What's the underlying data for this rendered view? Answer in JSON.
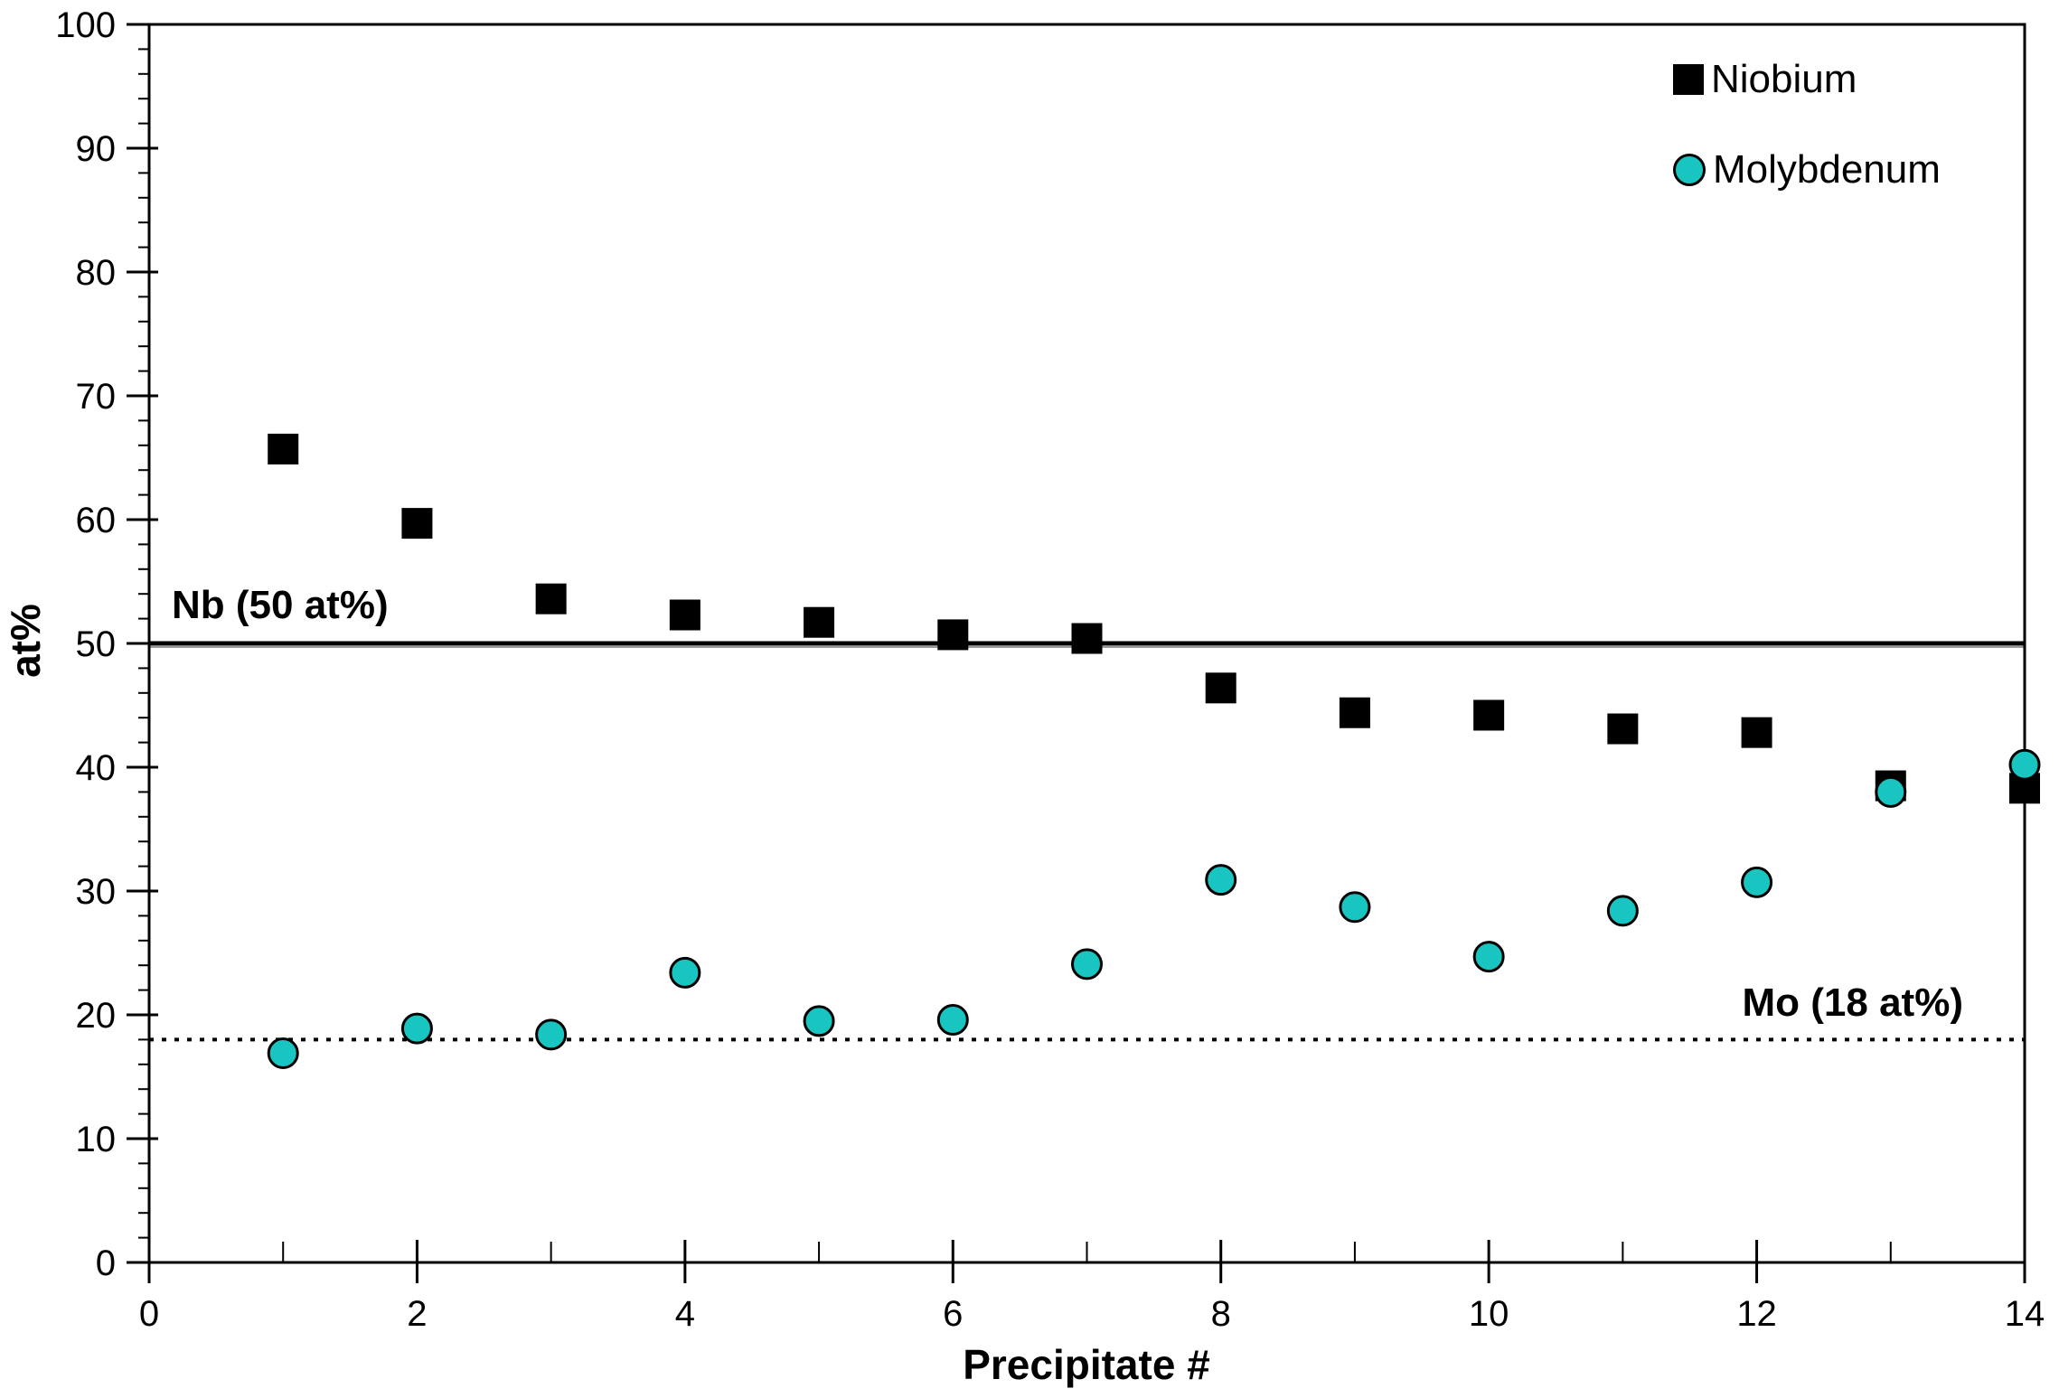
{
  "axes": {
    "x_title": "Precipitate #",
    "y_title": "at%"
  },
  "legend": {
    "items": [
      {
        "label": "Niobium",
        "marker": "square",
        "color": "#000000"
      },
      {
        "label": "Molybdenum",
        "marker": "circle",
        "color": "#18C5C0"
      }
    ]
  },
  "annotations": {
    "nb": "Nb (50 at%)",
    "mo": "Mo (18 at%)"
  },
  "colors": {
    "background": "#FFFFFF",
    "axis": "#000000",
    "niobium": "#000000",
    "molybdenum": "#18C5C0",
    "reference_line_shadow": "#999999"
  },
  "chart_data": {
    "type": "scatter",
    "title": "",
    "xlabel": "Precipitate #",
    "ylabel": "at%",
    "xlim": [
      0,
      14
    ],
    "ylim": [
      0,
      100
    ],
    "x_major_ticks": [
      0,
      2,
      4,
      6,
      8,
      10,
      12,
      14
    ],
    "x_minor_ticks": [
      1,
      3,
      5,
      7,
      9,
      11,
      13
    ],
    "y_major_ticks": [
      0,
      10,
      20,
      30,
      40,
      50,
      60,
      70,
      80,
      90,
      100
    ],
    "y_minor_step": 2,
    "grid": false,
    "legend_position": "top-right",
    "x": [
      1,
      2,
      3,
      4,
      5,
      6,
      7,
      8,
      9,
      10,
      11,
      12,
      13,
      14
    ],
    "series": [
      {
        "name": "Niobium",
        "marker": "square",
        "color": "#000000",
        "values": [
          65.7,
          59.7,
          53.6,
          52.3,
          51.7,
          50.7,
          50.4,
          46.4,
          44.4,
          44.2,
          43.1,
          42.8,
          38.5,
          38.3
        ]
      },
      {
        "name": "Molybdenum",
        "marker": "circle",
        "color": "#18C5C0",
        "values": [
          16.9,
          18.9,
          18.4,
          23.4,
          19.5,
          19.6,
          24.1,
          30.9,
          28.7,
          24.7,
          28.4,
          30.7,
          38.0,
          40.2
        ]
      }
    ],
    "reference_lines": [
      {
        "label": "Nb (50 at%)",
        "value": 50,
        "style": "solid"
      },
      {
        "label": "Mo (18 at%)",
        "value": 18,
        "style": "dotted"
      }
    ]
  }
}
